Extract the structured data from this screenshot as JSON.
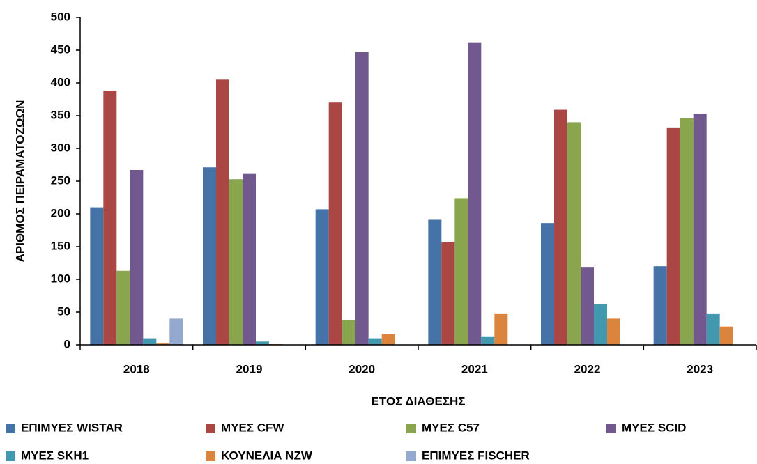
{
  "chart_data": {
    "type": "bar",
    "x_label": "ΕΤΟΣ ΔΙΑΘΕΣΗΣ",
    "y_label": "ΑΡΙΘΜΟΣ ΠΕΙΡΑΜΑΤΟΖΩΩΝ",
    "categories": [
      "2018",
      "2019",
      "2020",
      "2021",
      "2022",
      "2023"
    ],
    "series": [
      {
        "name": "ΕΠΙΜΥΕΣ WISTAR",
        "color": "#4572a7",
        "values": [
          210,
          271,
          207,
          191,
          186,
          120
        ]
      },
      {
        "name": "ΜΥΕΣ CFW",
        "color": "#aa4643",
        "values": [
          388,
          405,
          370,
          157,
          359,
          331
        ]
      },
      {
        "name": "ΜΥΕΣ C57",
        "color": "#89a54e",
        "values": [
          113,
          253,
          38,
          224,
          340,
          346
        ]
      },
      {
        "name": "ΜΥΕΣ SCID",
        "color": "#71588f",
        "values": [
          267,
          261,
          447,
          461,
          119,
          353
        ]
      },
      {
        "name": "ΜΥΕΣ SKH1",
        "color": "#4198af",
        "values": [
          10,
          5,
          10,
          13,
          62,
          48
        ]
      },
      {
        "name": "ΚΟΥΝΕΛΙΑ NZW",
        "color": "#db843d",
        "values": [
          2,
          1,
          16,
          48,
          40,
          28
        ]
      },
      {
        "name": "ΕΠΙΜΥΕΣ FISCHER",
        "color": "#93a9cf",
        "values": [
          40,
          0,
          0,
          0,
          0,
          0
        ]
      }
    ],
    "ylim": [
      0,
      500
    ],
    "yticks": [
      0,
      50,
      100,
      150,
      200,
      250,
      300,
      350,
      400,
      450,
      500
    ],
    "grid": false,
    "legend": "bottom"
  }
}
